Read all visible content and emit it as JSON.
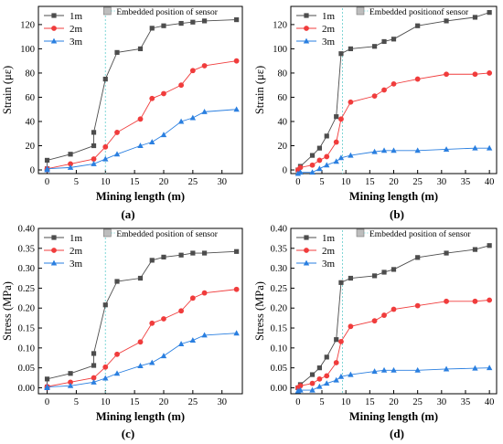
{
  "colors": {
    "1m": "#4d4d4d",
    "2m": "#f03c3c",
    "3m": "#2a7fe0",
    "sensor_line": "#7fd6d6",
    "sensor_marker": "#bdbdbd"
  },
  "chart_data": [
    {
      "type": "line",
      "panel_label": "(a)",
      "xlabel": "Mining length (m)",
      "ylabel": "Strain (με)",
      "xlim": [
        -1.5,
        33.5
      ],
      "ylim": [
        -3,
        135
      ],
      "xticks": [
        0,
        5,
        10,
        15,
        20,
        25,
        30
      ],
      "yticks": [
        0,
        20,
        40,
        60,
        80,
        100,
        120
      ],
      "sensor_x": 10,
      "annotation": "Embedded position of sensor",
      "legend_position": "top-left",
      "series": [
        {
          "name": "1m",
          "marker": "square",
          "x": [
            0,
            0,
            4,
            8,
            8,
            10,
            12,
            16,
            18,
            20,
            23,
            25,
            27,
            32.5
          ],
          "y": [
            1,
            8,
            13,
            20,
            31,
            75,
            97,
            100,
            117,
            119,
            121,
            122,
            123,
            124
          ]
        },
        {
          "name": "2m",
          "marker": "circle",
          "x": [
            0,
            0,
            4,
            8,
            10,
            12,
            16,
            18,
            20,
            23,
            25,
            27,
            32.5
          ],
          "y": [
            0,
            1,
            5,
            9,
            19,
            31,
            42,
            59,
            63,
            70,
            82,
            86,
            90
          ]
        },
        {
          "name": "3m",
          "marker": "triangle",
          "x": [
            0,
            0,
            4,
            8,
            10,
            12,
            16,
            18,
            20,
            23,
            25,
            27,
            32.5
          ],
          "y": [
            0,
            1,
            2,
            5,
            9,
            13,
            20,
            23,
            29,
            40,
            43,
            48,
            50
          ]
        }
      ]
    },
    {
      "type": "line",
      "panel_label": "(b)",
      "xlabel": "Mining length (m)",
      "ylabel": "Strain (με)",
      "xlim": [
        -1.5,
        41.5
      ],
      "ylim": [
        -3,
        135
      ],
      "xticks": [
        0,
        5,
        10,
        15,
        20,
        25,
        30,
        35,
        40
      ],
      "yticks": [
        0,
        20,
        40,
        60,
        80,
        100,
        120
      ],
      "sensor_x": 9.3,
      "annotation": "Embedded positionof sensor",
      "legend_position": "top-left",
      "series": [
        {
          "name": "1m",
          "marker": "square",
          "x": [
            0,
            0.5,
            3,
            4.5,
            6,
            8,
            9,
            11,
            16,
            18,
            20,
            25,
            31,
            37,
            40
          ],
          "y": [
            0,
            3,
            12,
            18,
            28,
            44,
            96,
            100,
            102,
            106,
            108,
            119,
            123,
            126,
            130
          ]
        },
        {
          "name": "2m",
          "marker": "circle",
          "x": [
            0,
            0.5,
            3,
            4.5,
            6,
            8,
            9,
            11,
            16,
            18,
            20,
            25,
            31,
            37,
            40
          ],
          "y": [
            0,
            2,
            4,
            8,
            11,
            23,
            42,
            56,
            61,
            66,
            71,
            75,
            79,
            79,
            80
          ]
        },
        {
          "name": "3m",
          "marker": "triangle",
          "x": [
            0,
            0.5,
            3,
            4.5,
            6,
            8,
            9,
            11,
            16,
            18,
            20,
            25,
            31,
            37,
            40
          ],
          "y": [
            -3,
            -2,
            -2,
            1,
            4,
            7,
            10,
            12,
            15,
            16,
            16,
            16,
            17,
            18,
            18
          ]
        }
      ]
    },
    {
      "type": "line",
      "panel_label": "(c)",
      "xlabel": "Mining length (m)",
      "ylabel": "Stress (MPa)",
      "xlim": [
        -1.5,
        33.5
      ],
      "ylim": [
        -0.015,
        0.4
      ],
      "xticks": [
        0,
        5,
        10,
        15,
        20,
        25,
        30
      ],
      "yticks": [
        0.0,
        0.05,
        0.1,
        0.15,
        0.2,
        0.25,
        0.3,
        0.35,
        0.4
      ],
      "ytick_labels": [
        "0.00",
        "0.05",
        "0.10",
        "0.15",
        "0.20",
        "0.25",
        "0.30",
        "0.35",
        "0.40"
      ],
      "sensor_x": 10,
      "annotation": "Embedded position of sensor",
      "legend_position": "top-left",
      "series": [
        {
          "name": "1m",
          "marker": "square",
          "x": [
            0,
            0,
            4,
            8,
            8,
            10,
            12,
            16,
            18,
            20,
            23,
            25,
            27,
            32.5
          ],
          "y": [
            0.002,
            0.022,
            0.036,
            0.056,
            0.086,
            0.208,
            0.267,
            0.275,
            0.32,
            0.328,
            0.333,
            0.338,
            0.338,
            0.342
          ]
        },
        {
          "name": "2m",
          "marker": "circle",
          "x": [
            0,
            0,
            4,
            8,
            10,
            12,
            16,
            18,
            20,
            23,
            25,
            27,
            32.5
          ],
          "y": [
            0.0,
            0.003,
            0.014,
            0.025,
            0.052,
            0.084,
            0.115,
            0.162,
            0.173,
            0.193,
            0.225,
            0.238,
            0.247
          ]
        },
        {
          "name": "3m",
          "marker": "triangle",
          "x": [
            0,
            0,
            4,
            8,
            10,
            12,
            16,
            18,
            20,
            23,
            25,
            27,
            32.5
          ],
          "y": [
            0.0,
            0.002,
            0.005,
            0.014,
            0.024,
            0.036,
            0.055,
            0.063,
            0.08,
            0.11,
            0.119,
            0.132,
            0.137
          ]
        }
      ]
    },
    {
      "type": "line",
      "panel_label": "(d)",
      "xlabel": "Mining length (m)",
      "ylabel": "Stress (MPa)",
      "xlim": [
        -1.5,
        41.5
      ],
      "ylim": [
        -0.015,
        0.4
      ],
      "xticks": [
        0,
        5,
        10,
        15,
        20,
        25,
        30,
        35,
        40
      ],
      "yticks": [
        0.0,
        0.05,
        0.1,
        0.15,
        0.2,
        0.25,
        0.3,
        0.35,
        0.4
      ],
      "ytick_labels": [
        "0.00",
        "0.05",
        "0.10",
        "0.15",
        "0.20",
        "0.25",
        "0.30",
        "0.35",
        "0.40"
      ],
      "sensor_x": 9.3,
      "annotation": "Embedded position of sensor",
      "legend_position": "top-left",
      "series": [
        {
          "name": "1m",
          "marker": "square",
          "x": [
            0,
            0.5,
            3,
            4.5,
            6,
            8,
            9,
            11,
            16,
            18,
            20,
            25,
            31,
            37,
            40
          ],
          "y": [
            0.0,
            0.008,
            0.033,
            0.05,
            0.077,
            0.121,
            0.264,
            0.275,
            0.281,
            0.29,
            0.297,
            0.327,
            0.338,
            0.347,
            0.357
          ]
        },
        {
          "name": "2m",
          "marker": "circle",
          "x": [
            0,
            0.5,
            3,
            4.5,
            6,
            8,
            9,
            11,
            16,
            18,
            20,
            25,
            31,
            37,
            40
          ],
          "y": [
            0.0,
            0.005,
            0.011,
            0.022,
            0.03,
            0.063,
            0.116,
            0.154,
            0.168,
            0.182,
            0.197,
            0.206,
            0.217,
            0.217,
            0.22
          ]
        },
        {
          "name": "3m",
          "marker": "triangle",
          "x": [
            0,
            0.5,
            3,
            4.5,
            6,
            8,
            9,
            11,
            16,
            18,
            20,
            25,
            31,
            37,
            40
          ],
          "y": [
            -0.008,
            -0.006,
            -0.006,
            0.003,
            0.011,
            0.019,
            0.028,
            0.033,
            0.041,
            0.044,
            0.044,
            0.044,
            0.047,
            0.049,
            0.05
          ]
        }
      ]
    }
  ]
}
